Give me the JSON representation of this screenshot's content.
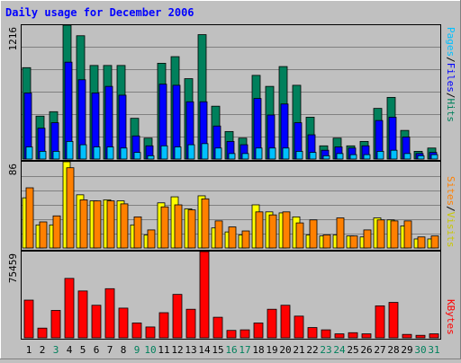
{
  "chart_data": [
    {
      "type": "bar",
      "title": "Daily usage for December 2006",
      "panel": "hits-files-pages",
      "ylim": [
        0,
        1216
      ],
      "max_label": "1216",
      "legend": [
        {
          "label": "Pages",
          "color": "#00c0ff"
        },
        {
          "label": "Files",
          "color": "#0000ff"
        },
        {
          "label": "Hits",
          "color": "#00805c"
        }
      ],
      "categories": [
        "1",
        "2",
        "3",
        "4",
        "5",
        "6",
        "7",
        "8",
        "9",
        "10",
        "11",
        "12",
        "13",
        "14",
        "15",
        "16",
        "17",
        "18",
        "19",
        "20",
        "21",
        "22",
        "23",
        "24",
        "25",
        "26",
        "27",
        "28",
        "29",
        "30",
        "31"
      ],
      "series": [
        {
          "name": "Hits",
          "color": "#00805c",
          "values": [
            830,
            390,
            430,
            1216,
            1120,
            850,
            850,
            850,
            370,
            190,
            870,
            930,
            730,
            1130,
            480,
            250,
            190,
            760,
            660,
            840,
            670,
            380,
            120,
            190,
            120,
            160,
            460,
            560,
            260,
            70,
            100
          ]
        },
        {
          "name": "Files",
          "color": "#0000ff",
          "values": [
            600,
            280,
            330,
            880,
            720,
            600,
            660,
            580,
            210,
            120,
            680,
            670,
            520,
            520,
            300,
            160,
            130,
            550,
            400,
            500,
            330,
            220,
            80,
            110,
            100,
            120,
            350,
            380,
            200,
            50,
            60
          ]
        },
        {
          "name": "Pages",
          "color": "#00c0ff",
          "values": [
            110,
            70,
            70,
            160,
            130,
            110,
            110,
            100,
            60,
            30,
            120,
            110,
            130,
            140,
            100,
            50,
            50,
            100,
            100,
            100,
            70,
            60,
            30,
            50,
            40,
            40,
            70,
            80,
            50,
            30,
            40
          ]
        }
      ]
    },
    {
      "type": "bar",
      "panel": "visits-sites",
      "ylim": [
        0,
        86
      ],
      "max_label": "86",
      "legend": [
        {
          "label": "Sites",
          "color": "#ff8000"
        },
        {
          "label": "Visits",
          "color": "#ffff00"
        }
      ],
      "categories": [
        "1",
        "2",
        "3",
        "4",
        "5",
        "6",
        "7",
        "8",
        "9",
        "10",
        "11",
        "12",
        "13",
        "14",
        "15",
        "16",
        "17",
        "18",
        "19",
        "20",
        "21",
        "22",
        "23",
        "24",
        "25",
        "26",
        "27",
        "28",
        "29",
        "30",
        "31"
      ],
      "series": [
        {
          "name": "Visits",
          "color": "#ffff00",
          "values": [
            50,
            23,
            23,
            86,
            53,
            47,
            48,
            47,
            23,
            13,
            45,
            51,
            39,
            52,
            20,
            16,
            13,
            43,
            36,
            35,
            31,
            13,
            12,
            13,
            12,
            11,
            30,
            28,
            22,
            9,
            9
          ]
        },
        {
          "name": "Sites",
          "color": "#ff8000",
          "values": [
            60,
            26,
            32,
            80,
            48,
            47,
            47,
            44,
            31,
            18,
            41,
            43,
            38,
            49,
            27,
            21,
            17,
            36,
            33,
            36,
            25,
            28,
            13,
            30,
            12,
            18,
            28,
            27,
            27,
            11,
            12
          ]
        }
      ]
    },
    {
      "type": "bar",
      "panel": "kbytes",
      "ylim": [
        0,
        75459
      ],
      "max_label": "75459",
      "legend": [
        {
          "label": "KBytes",
          "color": "#ff0000"
        }
      ],
      "categories": [
        "1",
        "2",
        "3",
        "4",
        "5",
        "6",
        "7",
        "8",
        "9",
        "10",
        "11",
        "12",
        "13",
        "14",
        "15",
        "16",
        "17",
        "18",
        "19",
        "20",
        "21",
        "22",
        "23",
        "24",
        "25",
        "26",
        "27",
        "28",
        "29",
        "30",
        "31"
      ],
      "weekend_days": [
        "3",
        "9",
        "10",
        "16",
        "17",
        "23",
        "24",
        "30",
        "31"
      ],
      "series": [
        {
          "name": "KBytes",
          "color": "#ff0000",
          "values": [
            33000,
            8500,
            24000,
            52000,
            41000,
            28500,
            43000,
            26000,
            13000,
            9500,
            22000,
            38000,
            25000,
            75459,
            18000,
            6500,
            7000,
            13000,
            25000,
            28500,
            19000,
            9000,
            7000,
            3500,
            4500,
            3500,
            28000,
            31000,
            3000,
            2200,
            3500
          ]
        }
      ]
    }
  ],
  "colors": {
    "background": "#c0c0c0",
    "plot": "#c0c0c0",
    "title": "#0000ff",
    "weekday_label": "#000000",
    "weekend_label": "#00805c"
  }
}
